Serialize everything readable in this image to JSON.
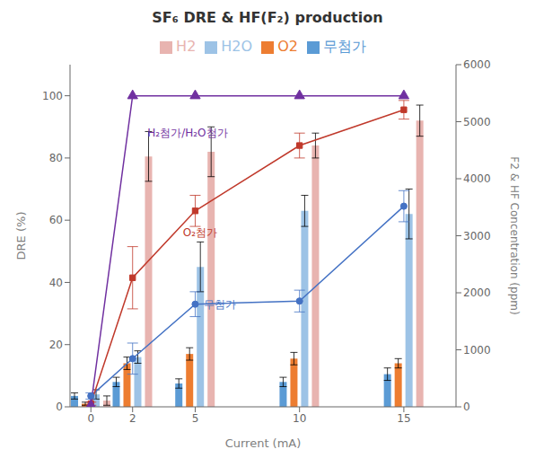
{
  "chart_data": {
    "type": "bar",
    "title": "SF₆ DRE & HF(F₂) production",
    "x_label": "Current (mA)",
    "y_label": "DRE (%)",
    "y2_label": "F2 & HF Concentration  (ppm)",
    "x": [
      0,
      2,
      5,
      10,
      15
    ],
    "xlim": [
      -1.0,
      17.5
    ],
    "xticks": [
      0,
      2,
      5,
      10,
      15
    ],
    "ylim": [
      0,
      110
    ],
    "yticks": [
      0,
      20,
      40,
      60,
      80,
      100
    ],
    "y2lim": [
      0,
      6000
    ],
    "y2ticks": [
      0,
      1000,
      2000,
      3000,
      4000,
      5000,
      6000
    ],
    "grid": false,
    "legend": "top",
    "series": [
      {
        "name": "무첨가",
        "type": "bar",
        "color": "#5b9bd5",
        "values": [
          3.5,
          8.0,
          7.5,
          8.0,
          10.5
        ],
        "errors": [
          1.0,
          1.5,
          1.5,
          1.5,
          2.0
        ]
      },
      {
        "name": "O2",
        "type": "bar",
        "color": "#ed7d31",
        "values": [
          1.0,
          14.0,
          17.0,
          15.5,
          14.0
        ],
        "errors": [
          0.5,
          2.0,
          2.0,
          2.0,
          1.5
        ]
      },
      {
        "name": "H2O",
        "type": "bar",
        "color": "#9dc3e6",
        "values": [
          4.0,
          16.0,
          45.0,
          63.0,
          62.0
        ],
        "errors": [
          1.5,
          2.0,
          8.0,
          5.0,
          8.0
        ]
      },
      {
        "name": "H2",
        "type": "bar",
        "color": "#e8b4b0",
        "values": [
          2.0,
          80.5,
          82.0,
          84.0,
          92.0
        ],
        "errors": [
          1.5,
          8.0,
          8.0,
          4.0,
          5.0
        ]
      },
      {
        "type": "line",
        "color": "#4472c4",
        "marker": "circle",
        "values": [
          3.5,
          15.5,
          33.0,
          34.0,
          64.5
        ],
        "errors": [
          1.0,
          5.0,
          4.0,
          3.5,
          5.0
        ]
      },
      {
        "type": "line",
        "color": "#c0392b",
        "marker": "square",
        "values": [
          1.0,
          41.5,
          63.0,
          84.0,
          95.5
        ],
        "errors": [
          0.5,
          10.0,
          5.0,
          4.0,
          3.0
        ]
      },
      {
        "type": "line",
        "color": "#7030a0",
        "marker": "triangle",
        "values": [
          0.5,
          100.0,
          100.0,
          100.0,
          100.0
        ],
        "errors": [
          0.0,
          0.0,
          0.0,
          0.0,
          0.0
        ]
      }
    ],
    "annotations": [
      {
        "text": "무첨가",
        "x": 5.2,
        "y": 33,
        "color": "#4472c4"
      },
      {
        "text": "O₂첨가",
        "x": 4.2,
        "y": 56,
        "color": "#c0392b"
      },
      {
        "text": "H₂첨가/H₂O첨가",
        "x": 2.5,
        "y": 88,
        "color": "#7030a0"
      }
    ]
  }
}
